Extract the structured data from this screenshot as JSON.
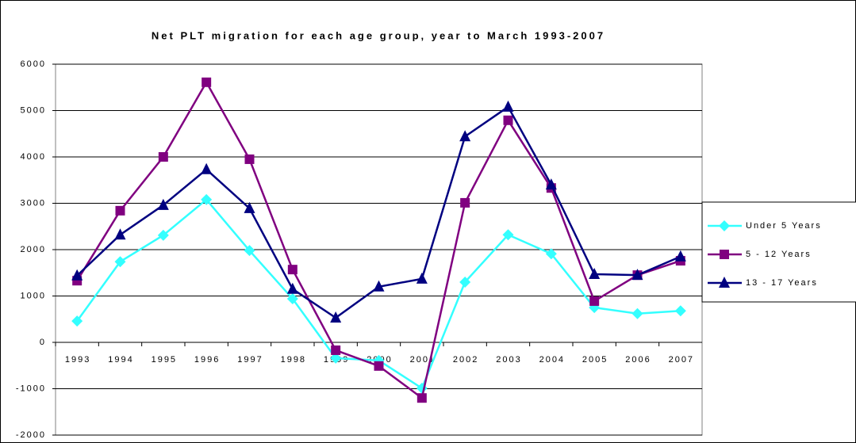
{
  "chart_data": {
    "type": "line",
    "title": "Net PLT migration for each age group, year to March 1993-2007",
    "categories": [
      "1993",
      "1994",
      "1995",
      "1996",
      "1997",
      "1998",
      "1999",
      "2000",
      "2001",
      "2002",
      "2003",
      "2004",
      "2005",
      "2006",
      "2007"
    ],
    "series": [
      {
        "name": "Under 5 Years",
        "color": "#33FFFF",
        "marker": "diamond",
        "values": [
          460,
          1740,
          2310,
          3080,
          1980,
          940,
          -340,
          -390,
          -990,
          1300,
          2320,
          1910,
          750,
          620,
          680
        ]
      },
      {
        "name": "5 - 12 Years",
        "color": "#800080",
        "marker": "square",
        "values": [
          1330,
          2840,
          4000,
          5610,
          3950,
          1570,
          -170,
          -510,
          -1200,
          3010,
          4790,
          3330,
          890,
          1450,
          1760
        ]
      },
      {
        "name": "13 - 17 Years",
        "color": "#000080",
        "marker": "triangle",
        "values": [
          1440,
          2320,
          2960,
          3730,
          2890,
          1150,
          530,
          1200,
          1370,
          4440,
          5080,
          3400,
          1470,
          1450,
          1850
        ]
      }
    ],
    "ylim": [
      -2000,
      6000
    ],
    "yticks": [
      -2000,
      -1000,
      0,
      1000,
      2000,
      3000,
      4000,
      5000,
      6000
    ],
    "grid": true,
    "legend": "right"
  }
}
